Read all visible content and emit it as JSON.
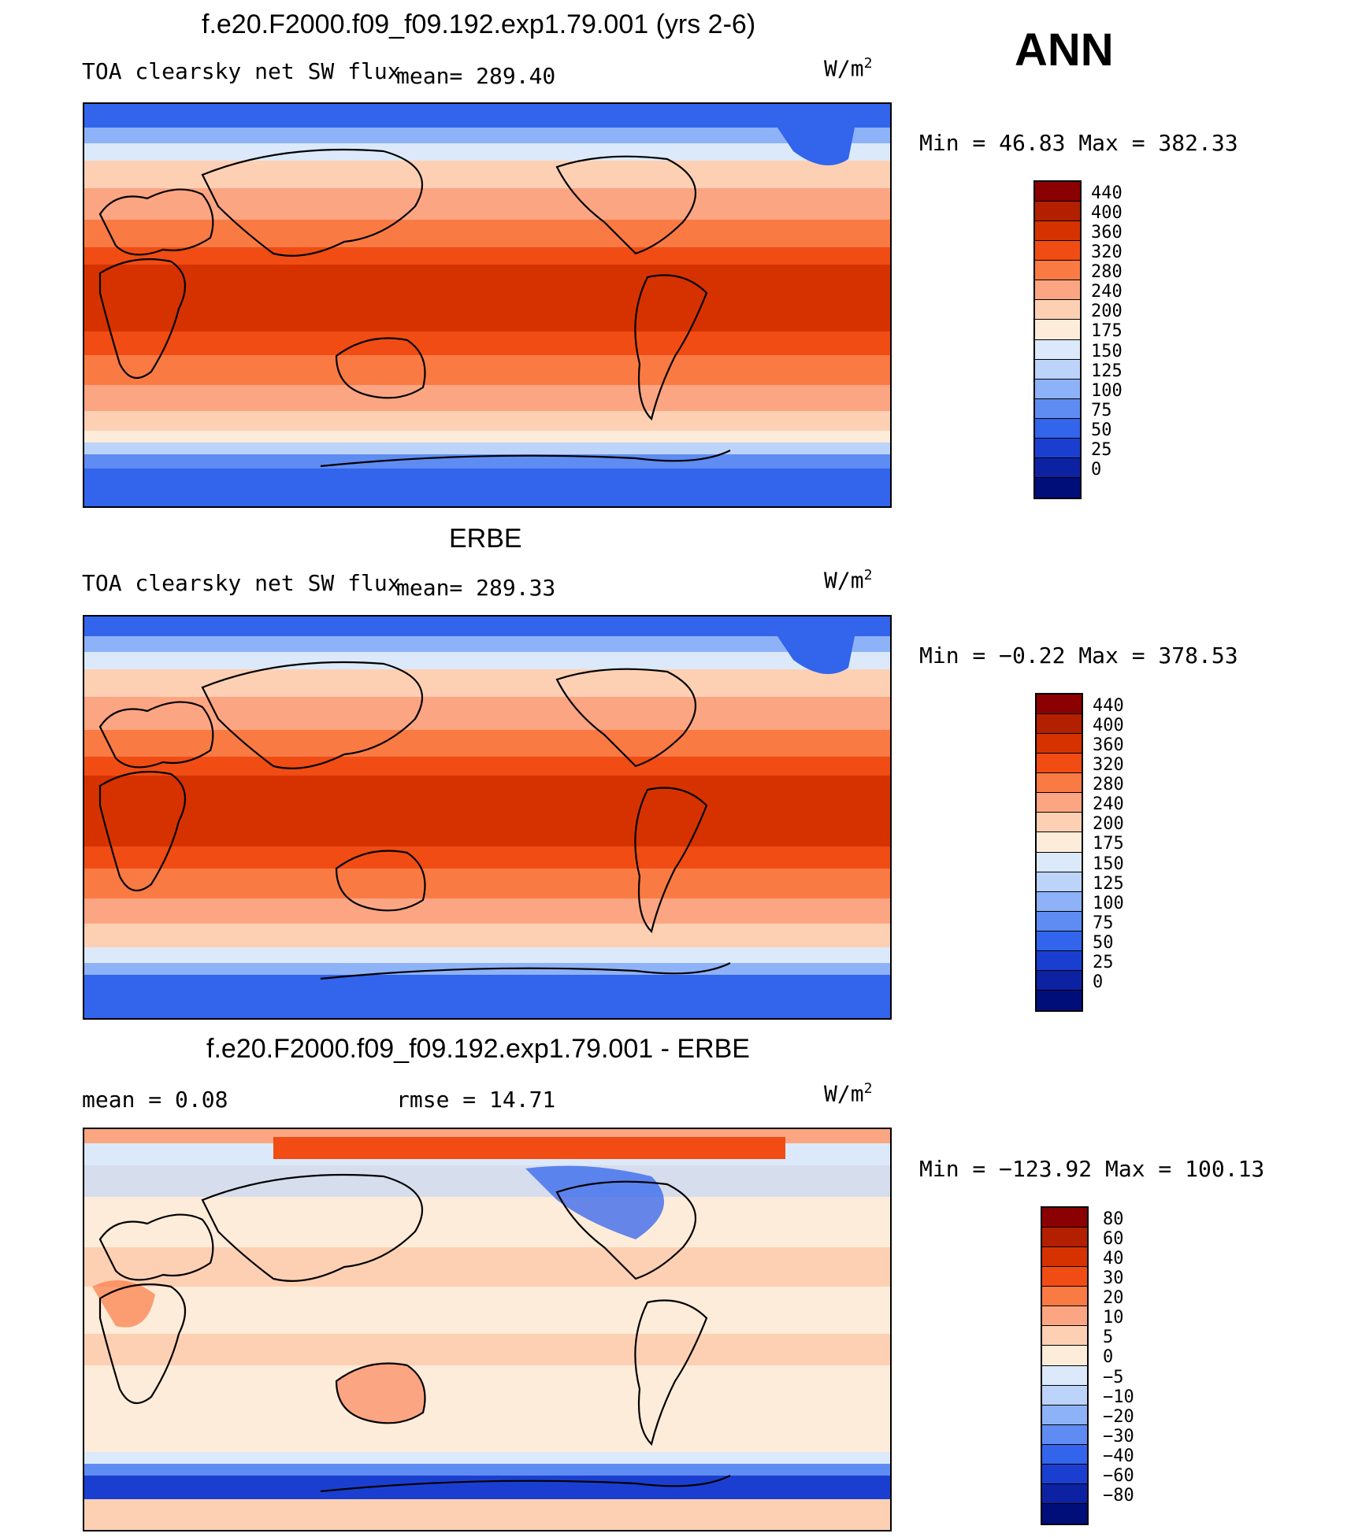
{
  "header": {
    "corner_label": "ANN"
  },
  "panels": [
    {
      "title": "f.e20.F2000.f09_f09.192.exp1.79.001 (yrs 2-6)",
      "left_label": "TOA clearsky net SW flux",
      "mean_label": "mean= 289.40",
      "units": "W/m",
      "units_sup": "2",
      "stats": "Min =   46.83 Max = 382.33",
      "colorbar_labels": [
        "440",
        "400",
        "360",
        "320",
        "280",
        "240",
        "200",
        "175",
        "150",
        "125",
        "100",
        "75",
        "50",
        "25",
        "0"
      ],
      "colorbar_colors": [
        "#8b0000",
        "#b22000",
        "#d63200",
        "#f04c14",
        "#fa7a44",
        "#fca582",
        "#fdd0b4",
        "#fdecd9",
        "#dbe9fa",
        "#bcd3fa",
        "#8eb2f7",
        "#5f8cf2",
        "#3264ec",
        "#1a3fd0",
        "#0d22a3",
        "#000e7a"
      ]
    },
    {
      "title": "ERBE",
      "left_label": "TOA clearsky net SW flux",
      "mean_label": "mean= 289.33",
      "units": "W/m",
      "units_sup": "2",
      "stats": "Min =  −0.22 Max = 378.53",
      "colorbar_labels": [
        "440",
        "400",
        "360",
        "320",
        "280",
        "240",
        "200",
        "175",
        "150",
        "125",
        "100",
        "75",
        "50",
        "25",
        "0"
      ],
      "colorbar_colors": [
        "#8b0000",
        "#b22000",
        "#d63200",
        "#f04c14",
        "#fa7a44",
        "#fca582",
        "#fdd0b4",
        "#fdecd9",
        "#dbe9fa",
        "#bcd3fa",
        "#8eb2f7",
        "#5f8cf2",
        "#3264ec",
        "#1a3fd0",
        "#0d22a3",
        "#000e7a"
      ]
    },
    {
      "title": "f.e20.F2000.f09_f09.192.exp1.79.001 - ERBE",
      "left_label": "mean =    0.08",
      "mean_label": "rmse =   14.71",
      "units": "W/m",
      "units_sup": "2",
      "stats": "Min = −123.92 Max = 100.13",
      "colorbar_labels": [
        "80",
        "60",
        "40",
        "30",
        "20",
        "10",
        "5",
        "0",
        "−5",
        "−10",
        "−20",
        "−30",
        "−40",
        "−60",
        "−80"
      ],
      "colorbar_colors": [
        "#8b0000",
        "#b22000",
        "#d63200",
        "#f04c14",
        "#fa7a44",
        "#fca582",
        "#fdd0b4",
        "#fdecd9",
        "#dbe9fa",
        "#bcd3fa",
        "#8eb2f7",
        "#5f8cf2",
        "#3264ec",
        "#1a3fd0",
        "#0d22a3",
        "#000e7a"
      ]
    }
  ]
}
